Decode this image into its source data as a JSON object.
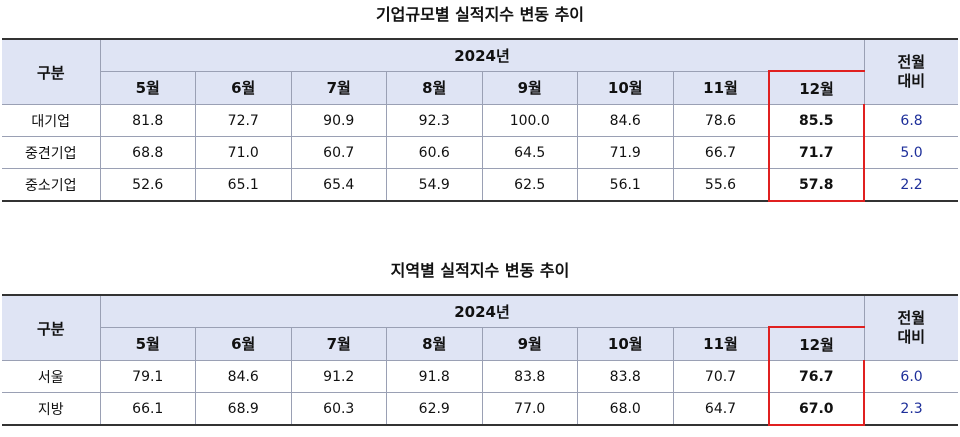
{
  "tables": [
    {
      "title": "기업규모별 실적지수 변동 추이",
      "corner": "구분",
      "year": "2024년",
      "change_header": "전월 대비",
      "months": [
        "5월",
        "6월",
        "7월",
        "8월",
        "9월",
        "10월",
        "11월",
        "12월"
      ],
      "rows": [
        {
          "label": "대기업",
          "values": [
            "81.8",
            "72.7",
            "90.9",
            "92.3",
            "100.0",
            "84.6",
            "78.6",
            "85.5"
          ],
          "change": "6.8"
        },
        {
          "label": "중견기업",
          "values": [
            "68.8",
            "71.0",
            "60.7",
            "60.6",
            "64.5",
            "71.9",
            "66.7",
            "71.7"
          ],
          "change": "5.0"
        },
        {
          "label": "중소기업",
          "values": [
            "52.6",
            "65.1",
            "65.4",
            "54.9",
            "62.5",
            "56.1",
            "55.6",
            "57.8"
          ],
          "change": "2.2"
        }
      ]
    },
    {
      "title": "지역별 실적지수 변동 추이",
      "corner": "구분",
      "year": "2024년",
      "change_header": "전월 대비",
      "months": [
        "5월",
        "6월",
        "7월",
        "8월",
        "9월",
        "10월",
        "11월",
        "12월"
      ],
      "rows": [
        {
          "label": "서울",
          "values": [
            "79.1",
            "84.6",
            "91.2",
            "91.8",
            "83.8",
            "83.8",
            "70.7",
            "76.7"
          ],
          "change": "6.0"
        },
        {
          "label": "지방",
          "values": [
            "66.1",
            "68.9",
            "60.3",
            "62.9",
            "77.0",
            "68.0",
            "64.7",
            "67.0"
          ],
          "change": "2.3"
        }
      ]
    }
  ]
}
